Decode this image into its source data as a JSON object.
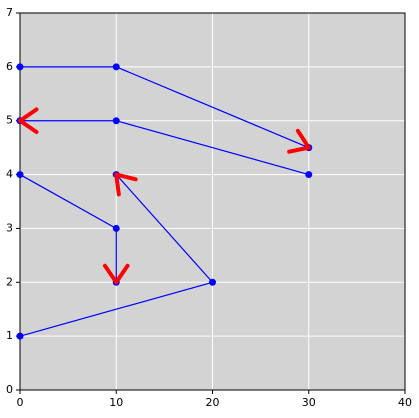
{
  "chart_data": {
    "type": "line",
    "x": [
      0,
      10,
      30,
      null,
      30,
      10,
      0,
      null,
      0,
      10,
      10,
      null,
      0,
      20,
      10
    ],
    "series": [
      {
        "color": "#0000ff",
        "values": [
          6,
          6,
          4.5,
          null,
          4,
          5,
          5,
          null,
          4,
          3,
          2,
          null,
          1,
          2,
          4
        ]
      }
    ],
    "arrow_color": "#ff0000",
    "xlim": [
      0,
      40
    ],
    "xticks": [
      0,
      10,
      20,
      30,
      40
    ],
    "ylim": [
      0,
      7
    ],
    "yticks": [
      0,
      1,
      2,
      3,
      4,
      5,
      6,
      7
    ],
    "grid": true,
    "background": "#d3d3d3"
  }
}
